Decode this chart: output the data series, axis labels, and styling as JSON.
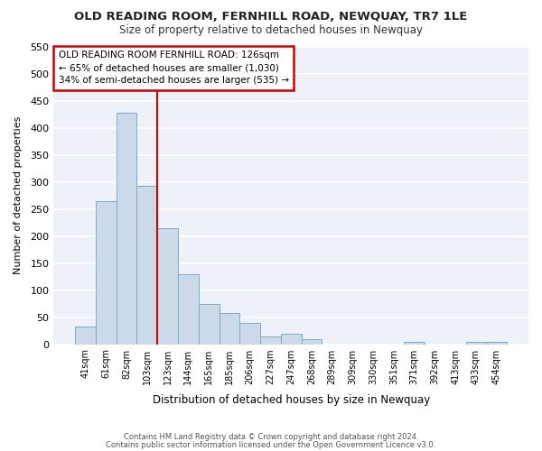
{
  "title": "OLD READING ROOM, FERNHILL ROAD, NEWQUAY, TR7 1LE",
  "subtitle": "Size of property relative to detached houses in Newquay",
  "xlabel": "Distribution of detached houses by size in Newquay",
  "ylabel": "Number of detached properties",
  "bar_color": "#ccd9e8",
  "bar_edge_color": "#7aaac8",
  "background_color": "#eef2f8",
  "grid_color": "white",
  "ylim": [
    0,
    550
  ],
  "yticks": [
    0,
    50,
    100,
    150,
    200,
    250,
    300,
    350,
    400,
    450,
    500,
    550
  ],
  "bin_labels": [
    "41sqm",
    "61sqm",
    "82sqm",
    "103sqm",
    "123sqm",
    "144sqm",
    "165sqm",
    "185sqm",
    "206sqm",
    "227sqm",
    "247sqm",
    "268sqm",
    "289sqm",
    "309sqm",
    "330sqm",
    "351sqm",
    "371sqm",
    "392sqm",
    "413sqm",
    "433sqm",
    "454sqm"
  ],
  "bar_heights": [
    32,
    265,
    428,
    293,
    215,
    130,
    75,
    58,
    40,
    15,
    20,
    10,
    0,
    0,
    0,
    0,
    5,
    0,
    0,
    5,
    5
  ],
  "vline_x_index": 4,
  "annotation_title": "OLD READING ROOM FERNHILL ROAD: 126sqm",
  "annotation_line1": "← 65% of detached houses are smaller (1,030)",
  "annotation_line2": "34% of semi-detached houses are larger (535) →",
  "footer_line1": "Contains HM Land Registry data © Crown copyright and database right 2024.",
  "footer_line2": "Contains public sector information licensed under the Open Government Licence v3.0."
}
